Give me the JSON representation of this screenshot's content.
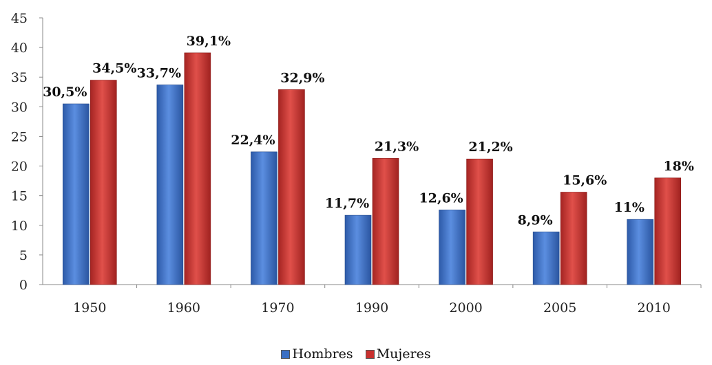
{
  "chart_data": {
    "type": "bar",
    "categories": [
      "1950",
      "1960",
      "1970",
      "1990",
      "2000",
      "2005",
      "2010"
    ],
    "series": [
      {
        "name": "Hombres",
        "values": [
          30.5,
          33.7,
          22.4,
          11.7,
          12.6,
          8.9,
          11
        ],
        "labels": [
          "30,5%",
          "33,7%",
          "22,4%",
          "11,7%",
          "12,6%",
          "8,9%",
          "11%"
        ],
        "color": "#3a6fc4"
      },
      {
        "name": "Mujeres",
        "values": [
          34.5,
          39.1,
          32.9,
          21.3,
          21.2,
          15.6,
          18
        ],
        "labels": [
          "34,5%",
          "39,1%",
          "32,9%",
          "21,3%",
          "21,2%",
          "15,6%",
          "18%"
        ],
        "color": "#c8302e"
      }
    ],
    "yticks": [
      "0",
      "5",
      "10",
      "15",
      "20",
      "25",
      "30",
      "35",
      "40",
      "45"
    ],
    "ylim": [
      0,
      45
    ],
    "legend_position": "bottom",
    "grid": false
  }
}
